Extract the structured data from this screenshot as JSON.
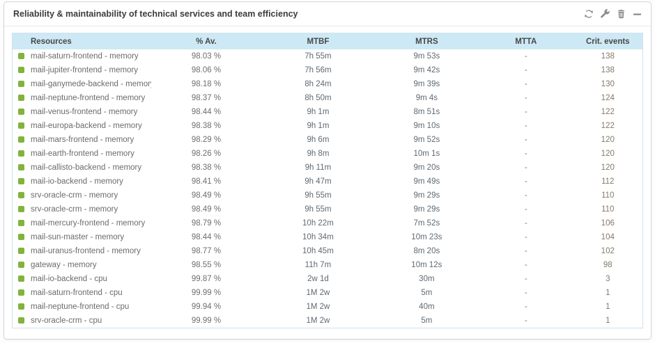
{
  "widget": {
    "title": "Reliability & maintainability of technical services and team efficiency",
    "toolbar": {
      "refresh_label": "refresh",
      "edit_label": "edit",
      "delete_label": "delete",
      "minimize_label": "minimize"
    }
  },
  "table": {
    "columns": [
      "Resources",
      "% Av.",
      "MTBF",
      "MTRS",
      "MTTA",
      "Crit. events"
    ],
    "rows": [
      {
        "resource": "mail-saturn-frontend - memory",
        "availability": "98.03 %",
        "mtbf": "7h 55m",
        "mtrs": "9m 53s",
        "mtta": "-",
        "crit_events": "138"
      },
      {
        "resource": "mail-jupiter-frontend - memory",
        "availability": "98.06 %",
        "mtbf": "7h 56m",
        "mtrs": "9m 42s",
        "mtta": "-",
        "crit_events": "138"
      },
      {
        "resource": "mail-ganymede-backend - memory",
        "availability": "98.18 %",
        "mtbf": "8h 24m",
        "mtrs": "9m 39s",
        "mtta": "-",
        "crit_events": "130"
      },
      {
        "resource": "mail-neptune-frontend - memory",
        "availability": "98.37 %",
        "mtbf": "8h 50m",
        "mtrs": "9m 4s",
        "mtta": "-",
        "crit_events": "124"
      },
      {
        "resource": "mail-venus-frontend - memory",
        "availability": "98.44 %",
        "mtbf": "9h 1m",
        "mtrs": "8m 51s",
        "mtta": "-",
        "crit_events": "122"
      },
      {
        "resource": "mail-europa-backend - memory",
        "availability": "98.38 %",
        "mtbf": "9h 1m",
        "mtrs": "9m 10s",
        "mtta": "-",
        "crit_events": "122"
      },
      {
        "resource": "mail-mars-frontend - memory",
        "availability": "98.29 %",
        "mtbf": "9h 6m",
        "mtrs": "9m 52s",
        "mtta": "-",
        "crit_events": "120"
      },
      {
        "resource": "mail-earth-frontend - memory",
        "availability": "98.26 %",
        "mtbf": "9h 8m",
        "mtrs": "10m 1s",
        "mtta": "-",
        "crit_events": "120"
      },
      {
        "resource": "mail-callisto-backend - memory",
        "availability": "98.38 %",
        "mtbf": "9h 11m",
        "mtrs": "9m 20s",
        "mtta": "-",
        "crit_events": "120"
      },
      {
        "resource": "mail-io-backend - memory",
        "availability": "98.41 %",
        "mtbf": "9h 47m",
        "mtrs": "9m 49s",
        "mtta": "-",
        "crit_events": "112"
      },
      {
        "resource": "srv-oracle-crm - memory",
        "availability": "98.49 %",
        "mtbf": "9h 55m",
        "mtrs": "9m 29s",
        "mtta": "-",
        "crit_events": "110"
      },
      {
        "resource": "srv-oracle-crm - memory",
        "availability": "98.49 %",
        "mtbf": "9h 55m",
        "mtrs": "9m 29s",
        "mtta": "-",
        "crit_events": "110"
      },
      {
        "resource": "mail-mercury-frontend - memory",
        "availability": "98.79 %",
        "mtbf": "10h 22m",
        "mtrs": "7m 52s",
        "mtta": "-",
        "crit_events": "106"
      },
      {
        "resource": "mail-sun-master - memory",
        "availability": "98.44 %",
        "mtbf": "10h 34m",
        "mtrs": "10m 23s",
        "mtta": "-",
        "crit_events": "104"
      },
      {
        "resource": "mail-uranus-frontend - memory",
        "availability": "98.77 %",
        "mtbf": "10h 45m",
        "mtrs": "8m 20s",
        "mtta": "-",
        "crit_events": "102"
      },
      {
        "resource": "gateway - memory",
        "availability": "98.55 %",
        "mtbf": "11h 7m",
        "mtrs": "10m 12s",
        "mtta": "-",
        "crit_events": "98"
      },
      {
        "resource": "mail-io-backend - cpu",
        "availability": "99.87 %",
        "mtbf": "2w 1d",
        "mtrs": "30m",
        "mtta": "-",
        "crit_events": "3"
      },
      {
        "resource": "mail-saturn-frontend - cpu",
        "availability": "99.99 %",
        "mtbf": "1M 2w",
        "mtrs": "5m",
        "mtta": "-",
        "crit_events": "1"
      },
      {
        "resource": "mail-neptune-frontend - cpu",
        "availability": "99.94 %",
        "mtbf": "1M 2w",
        "mtrs": "40m",
        "mtta": "-",
        "crit_events": "1"
      },
      {
        "resource": "srv-oracle-crm - cpu",
        "availability": "99.99 %",
        "mtbf": "1M 2w",
        "mtrs": "5m",
        "mtta": "-",
        "crit_events": "1"
      }
    ]
  },
  "colors": {
    "status_ok": "#80b43c",
    "header_bg": "#cde9f5",
    "table_border": "#cfe2ee",
    "time_text": "#5e6972",
    "crit_text": "#84796a",
    "icon_gray": "#8c8c8c"
  }
}
